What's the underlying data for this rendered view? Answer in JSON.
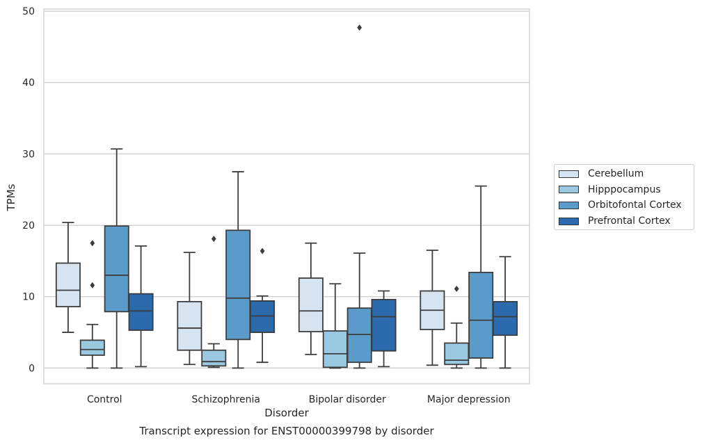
{
  "chart_data": {
    "type": "boxplot",
    "title": "Transcript expression for ENST00000399798 by disorder",
    "xlabel": "Disorder",
    "ylabel": "TPMs",
    "ylim": [
      -2.2,
      50.3
    ],
    "yticks": [
      0,
      10,
      20,
      30,
      40,
      50
    ],
    "grid": "horizontal",
    "legend_position": "right",
    "categories": [
      "Control",
      "Schizophrenia",
      "Bipolar disorder",
      "Major depression"
    ],
    "series": [
      {
        "name": "Cerebellum",
        "color": "#d6e4f2",
        "boxes": [
          {
            "whisker_low": 5.0,
            "q1": 8.6,
            "median": 10.9,
            "q3": 14.7,
            "whisker_high": 20.4,
            "outliers": []
          },
          {
            "whisker_low": 0.5,
            "q1": 2.5,
            "median": 5.6,
            "q3": 9.3,
            "whisker_high": 16.2,
            "outliers": []
          },
          {
            "whisker_low": 1.9,
            "q1": 5.1,
            "median": 8.0,
            "q3": 12.6,
            "whisker_high": 17.5,
            "outliers": []
          },
          {
            "whisker_low": 0.4,
            "q1": 5.4,
            "median": 8.1,
            "q3": 10.8,
            "whisker_high": 16.5,
            "outliers": []
          }
        ]
      },
      {
        "name": "Hipppocampus",
        "color": "#9ac8e0",
        "boxes": [
          {
            "whisker_low": 0.0,
            "q1": 1.8,
            "median": 2.6,
            "q3": 3.9,
            "whisker_high": 6.1,
            "outliers": [
              11.6,
              17.5
            ]
          },
          {
            "whisker_low": 0.1,
            "q1": 0.3,
            "median": 0.9,
            "q3": 2.5,
            "whisker_high": 3.4,
            "outliers": [
              18.1
            ]
          },
          {
            "whisker_low": 0.0,
            "q1": 0.1,
            "median": 2.0,
            "q3": 5.2,
            "whisker_high": 11.8,
            "outliers": []
          },
          {
            "whisker_low": 0.0,
            "q1": 0.5,
            "median": 1.1,
            "q3": 3.5,
            "whisker_high": 6.3,
            "outliers": [
              11.1
            ]
          }
        ]
      },
      {
        "name": "Orbitofontal Cortex",
        "color": "#5b9bc9",
        "boxes": [
          {
            "whisker_low": 0.0,
            "q1": 7.9,
            "median": 13.0,
            "q3": 19.9,
            "whisker_high": 30.7,
            "outliers": []
          },
          {
            "whisker_low": 0.0,
            "q1": 4.0,
            "median": 9.8,
            "q3": 19.3,
            "whisker_high": 27.5,
            "outliers": []
          },
          {
            "whisker_low": 0.0,
            "q1": 0.8,
            "median": 4.7,
            "q3": 8.4,
            "whisker_high": 16.1,
            "outliers": [
              47.7
            ]
          },
          {
            "whisker_low": 0.0,
            "q1": 1.4,
            "median": 6.7,
            "q3": 13.4,
            "whisker_high": 25.5,
            "outliers": []
          }
        ]
      },
      {
        "name": "Prefrontal Cortex",
        "color": "#2a6aad",
        "boxes": [
          {
            "whisker_low": 0.2,
            "q1": 5.3,
            "median": 8.0,
            "q3": 10.4,
            "whisker_high": 17.1,
            "outliers": []
          },
          {
            "whisker_low": 0.8,
            "q1": 5.0,
            "median": 7.3,
            "q3": 9.4,
            "whisker_high": 10.1,
            "outliers": [
              16.4
            ]
          },
          {
            "whisker_low": 0.2,
            "q1": 2.4,
            "median": 7.2,
            "q3": 9.6,
            "whisker_high": 10.8,
            "outliers": []
          },
          {
            "whisker_low": 0.0,
            "q1": 4.6,
            "median": 7.2,
            "q3": 9.3,
            "whisker_high": 15.6,
            "outliers": []
          }
        ]
      }
    ]
  }
}
